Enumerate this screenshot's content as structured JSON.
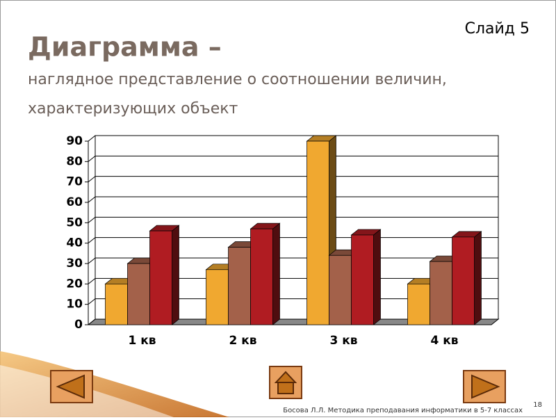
{
  "slide_label": "Слайд 5",
  "footer": "Босова Л.Л. Методика преподавания информатики в 5-7 классах",
  "page_number": "18",
  "chart_data": {
    "type": "bar3d",
    "title": "Диаграмма –",
    "subtitle": [
      "наглядное представление о соотношении величин,",
      "характеризующих объект"
    ],
    "categories": [
      "1 кв",
      "2 кв",
      "3 кв",
      "4 кв"
    ],
    "series": [
      {
        "color": "#f0a830",
        "values": [
          20,
          27,
          90,
          20
        ]
      },
      {
        "color": "#a3614a",
        "values": [
          30,
          38,
          34,
          31
        ]
      },
      {
        "color": "#b01c22",
        "values": [
          46,
          47,
          44,
          43
        ]
      }
    ],
    "ylim": [
      0,
      90
    ],
    "yticks": [
      0,
      10,
      20,
      30,
      40,
      50,
      60,
      70,
      80,
      90
    ],
    "grid": true
  }
}
